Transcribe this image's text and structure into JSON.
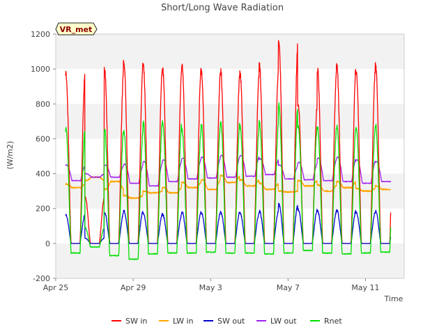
{
  "chart_data": {
    "type": "line",
    "title": "Short/Long Wave Radiation",
    "xlabel": "Time",
    "ylabel": "(W/m2)",
    "badge": "VR_met",
    "x_ticks": [
      "Apr 25",
      "Apr 29",
      "May 3",
      "May 7",
      "May 11"
    ],
    "x_tick_days": [
      0,
      4,
      8,
      12,
      16
    ],
    "xlim_days": [
      0,
      18
    ],
    "data_start_day": 0.5,
    "data_end_day": 17.3,
    "ylim": [
      -200,
      1200
    ],
    "y_ticks": [
      -200,
      0,
      200,
      400,
      600,
      800,
      1000,
      1200
    ],
    "grid": "horizontal alternating bands",
    "legend_position": "bottom",
    "colors": {
      "sw_in": "#ff0000",
      "lw_in": "#ffa500",
      "sw_out": "#0000cd",
      "lw_out": "#a020f0",
      "rnet": "#00e000",
      "band": "#f2f2f2",
      "badge_bg": "#ffffcc",
      "badge_text": "#8b0000"
    },
    "series": [
      {
        "key": "sw_in",
        "name": "SW in",
        "daily_peak": [
          975,
          265,
          1005,
          1040,
          1025,
          1000,
          1015,
          985,
          985,
          975,
          1020,
          1165,
          800,
          1000,
          1020,
          995,
          1025
        ]
      },
      {
        "key": "lw_in",
        "name": "LW in",
        "daily_day": [
          340,
          360,
          310,
          275,
          300,
          320,
          350,
          365,
          390,
          365,
          345,
          300,
          360,
          335,
          355,
          315,
          330
        ],
        "daily_night": [
          320,
          380,
          355,
          260,
          290,
          290,
          320,
          310,
          350,
          330,
          310,
          295,
          330,
          300,
          320,
          300,
          310
        ]
      },
      {
        "key": "sw_out",
        "name": "SW out",
        "daily_peak": [
          165,
          30,
          175,
          185,
          170,
          165,
          180,
          175,
          180,
          175,
          185,
          225,
          195,
          185,
          190,
          180,
          185
        ]
      },
      {
        "key": "lw_out",
        "name": "LW out",
        "daily_day": [
          450,
          400,
          450,
          455,
          470,
          480,
          490,
          495,
          505,
          505,
          485,
          450,
          465,
          490,
          495,
          480,
          470
        ],
        "daily_night": [
          360,
          380,
          380,
          345,
          330,
          355,
          370,
          375,
          380,
          385,
          395,
          370,
          365,
          360,
          355,
          345,
          355
        ]
      },
      {
        "key": "rnet",
        "name": "Rnet",
        "daily_peak": [
          655,
          90,
          655,
          645,
          695,
          690,
          650,
          685,
          695,
          675,
          695,
          800,
          675,
          665,
          670,
          660,
          680
        ],
        "daily_night": [
          -55,
          -20,
          -70,
          -90,
          -60,
          -55,
          -55,
          -50,
          -55,
          -55,
          -60,
          -55,
          -40,
          -55,
          -60,
          -55,
          -50
        ]
      }
    ]
  }
}
